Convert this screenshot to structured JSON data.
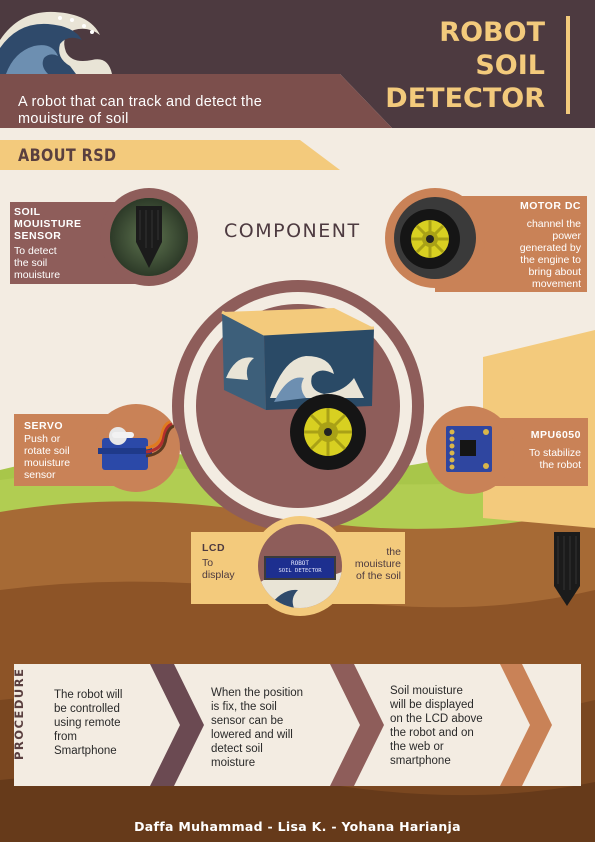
{
  "header": {
    "title_lines": [
      "ROBOT",
      "SOIL",
      "DETECTOR"
    ],
    "tagline_lines": [
      "A robot that can track and detect the",
      "mouisture  of soil"
    ]
  },
  "about": {
    "label": "ABOUT RSD"
  },
  "component": {
    "label": "COMPONENT"
  },
  "components": {
    "soil_sensor": {
      "title_lines": [
        "SOIL",
        "MOUISTURE",
        "SENSOR"
      ],
      "text_lines": [
        "To detect",
        "the soil",
        "mouisture"
      ]
    },
    "motor_dc": {
      "title": "MOTOR DC",
      "text_lines": [
        "channel the",
        "power",
        "generated by",
        "the engine to",
        "bring about",
        "movement"
      ]
    },
    "servo": {
      "title": "SERVO",
      "text_lines": [
        "Push or",
        "rotate soil",
        "mouisture",
        "sensor"
      ]
    },
    "mpu6050": {
      "title": "MPU6050",
      "text_lines": [
        "To stabilize",
        "the robot"
      ]
    },
    "lcd": {
      "title": "LCD",
      "text_left_lines": [
        "To",
        "display"
      ],
      "text_right_lines": [
        "the",
        "mouisture",
        "of the soil"
      ],
      "screen_lines": [
        "ROBOT",
        "SOIL DETECTOR"
      ]
    }
  },
  "procedure": {
    "label": "PROCEDURE",
    "steps": [
      {
        "lines": [
          "The robot will",
          "be controlled",
          "using remote",
          "from",
          "Smartphone"
        ]
      },
      {
        "lines": [
          "When the position",
          "is fix, the soil",
          "sensor can be",
          "lowered and will",
          "detect soil",
          "moisture"
        ]
      },
      {
        "lines": [
          "Soil mouisture",
          "will be displayed",
          "on the LCD above",
          "the robot and on",
          "the web or",
          "smartphone"
        ]
      }
    ]
  },
  "footer": {
    "authors": "Daffa Muhammad - Lisa K. - Yohana Harianja"
  },
  "colors": {
    "dark_header": "#4d3a40",
    "mauve": "#8e5d5a",
    "rust": "#c98257",
    "cream": "#f3ca7c",
    "green": "#a8c64a",
    "brown": "#a66a35"
  },
  "icons": [
    "wave-illustration",
    "soil-sensor-icon",
    "wheel-icon",
    "servo-icon",
    "mpu-board-icon",
    "lcd-screen-icon",
    "robot-box-icon",
    "probe-icon",
    "chevron-arrow-icon"
  ]
}
